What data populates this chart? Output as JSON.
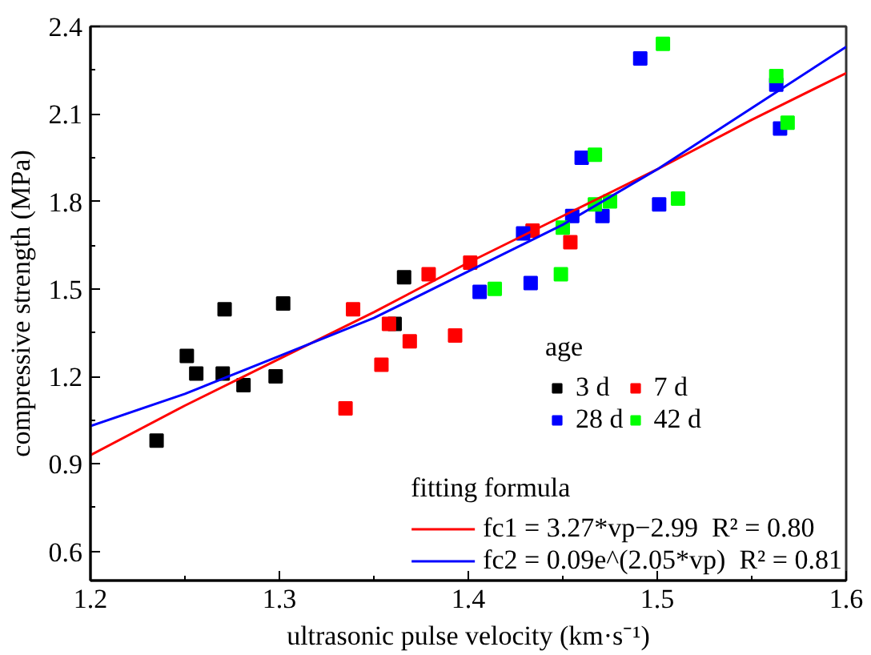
{
  "chart_data": {
    "type": "scatter",
    "xlabel": "ultrasonic pulse velocity (km·s⁻¹)",
    "ylabel": "compressive strength (MPa)",
    "legend_title": "age",
    "annotations": [
      "fitting formula"
    ],
    "marker": "square",
    "grid": false,
    "legend": "bottom right",
    "xlim": [
      1.2,
      1.6
    ],
    "xticks": [
      1.2,
      1.3,
      1.4,
      1.5,
      1.6
    ],
    "ylim": [
      0.5,
      2.4
    ],
    "yticks": [
      0.6,
      0.9,
      1.2,
      1.5,
      1.8,
      2.1,
      2.4
    ],
    "series": [
      {
        "name": "3 d",
        "color": "#000000",
        "x": [
          1.235,
          1.251,
          1.256,
          1.271,
          1.27,
          1.281,
          1.298,
          1.302,
          1.361,
          1.366
        ],
        "values": [
          0.98,
          1.27,
          1.21,
          1.43,
          1.21,
          1.17,
          1.2,
          1.45,
          1.38,
          1.54
        ]
      },
      {
        "name": "7 d",
        "color": "#ff0000",
        "x": [
          1.335,
          1.339,
          1.354,
          1.358,
          1.369,
          1.379,
          1.393,
          1.401,
          1.434,
          1.454
        ],
        "values": [
          1.09,
          1.43,
          1.24,
          1.38,
          1.32,
          1.55,
          1.34,
          1.59,
          1.7,
          1.66
        ]
      },
      {
        "name": "28 d",
        "color": "#0000ff",
        "x": [
          1.406,
          1.429,
          1.433,
          1.455,
          1.46,
          1.471,
          1.491,
          1.501,
          1.563,
          1.565
        ],
        "values": [
          1.49,
          1.69,
          1.52,
          1.75,
          1.95,
          1.75,
          2.29,
          1.79,
          2.2,
          2.05
        ]
      },
      {
        "name": "42 d",
        "color": "#00ff00",
        "x": [
          1.414,
          1.449,
          1.45,
          1.467,
          1.467,
          1.475,
          1.503,
          1.511,
          1.563,
          1.569
        ],
        "values": [
          1.5,
          1.55,
          1.71,
          1.96,
          1.79,
          1.8,
          2.34,
          1.81,
          2.23,
          2.07
        ]
      },
      {
        "type": "line",
        "marker": "none",
        "name": "fc1 = 3.27*vp−2.99  R² = 0.80",
        "color": "#ff0000",
        "x": [
          1.2,
          1.25,
          1.3,
          1.35,
          1.4,
          1.45,
          1.5,
          1.55,
          1.6
        ],
        "values": [
          0.93,
          1.1,
          1.26,
          1.42,
          1.59,
          1.75,
          1.91,
          2.08,
          2.24
        ]
      },
      {
        "type": "line",
        "marker": "none",
        "name": "fc2 = 0.09e^(2.05*vp)  R² = 0.81",
        "color": "#0000ff",
        "x": [
          1.2,
          1.25,
          1.3,
          1.35,
          1.4,
          1.45,
          1.5,
          1.55,
          1.6
        ],
        "values": [
          1.03,
          1.14,
          1.27,
          1.4,
          1.56,
          1.72,
          1.91,
          2.12,
          2.33
        ]
      }
    ]
  }
}
